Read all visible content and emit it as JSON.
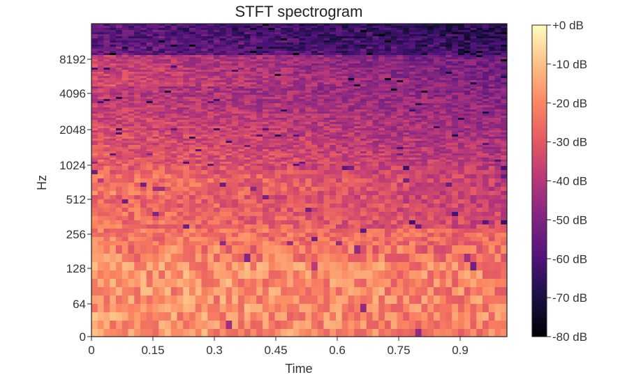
{
  "chart_data": {
    "type": "heatmap",
    "title": "STFT spectrogram",
    "xlabel": "Time",
    "ylabel": "Hz",
    "x_ticks": [
      "0",
      "0.15",
      "0.3",
      "0.45",
      "0.6",
      "0.75",
      "0.9"
    ],
    "x_tick_values": [
      0,
      0.15,
      0.3,
      0.45,
      0.6,
      0.75,
      0.9
    ],
    "xlim": [
      0,
      1.01
    ],
    "y_scale": "log-like (librosa 'log' frequency axis)",
    "y_ticks": [
      "0",
      "64",
      "128",
      "256",
      "512",
      "1024",
      "2048",
      "4096",
      "8192"
    ],
    "y_tick_values": [
      0,
      64,
      128,
      256,
      512,
      1024,
      2048,
      4096,
      8192
    ],
    "ylim": [
      0,
      22050
    ],
    "colormap": "magma",
    "colorbar": {
      "range_db": [
        -80,
        0
      ],
      "ticks": [
        "+0 dB",
        "-10 dB",
        "-20 dB",
        "-30 dB",
        "-40 dB",
        "-50 dB",
        "-60 dB",
        "-70 dB",
        "-80 dB"
      ]
    },
    "grid": false,
    "description_of_intensity": "High energy (-5 to -15 dB) below ~200 Hz, mid energy (-20 to -30 dB) 256-4096 Hz with a brighter band near 6000 Hz early in time, decaying toward -45 to -60 dB at high frequencies later in time."
  }
}
